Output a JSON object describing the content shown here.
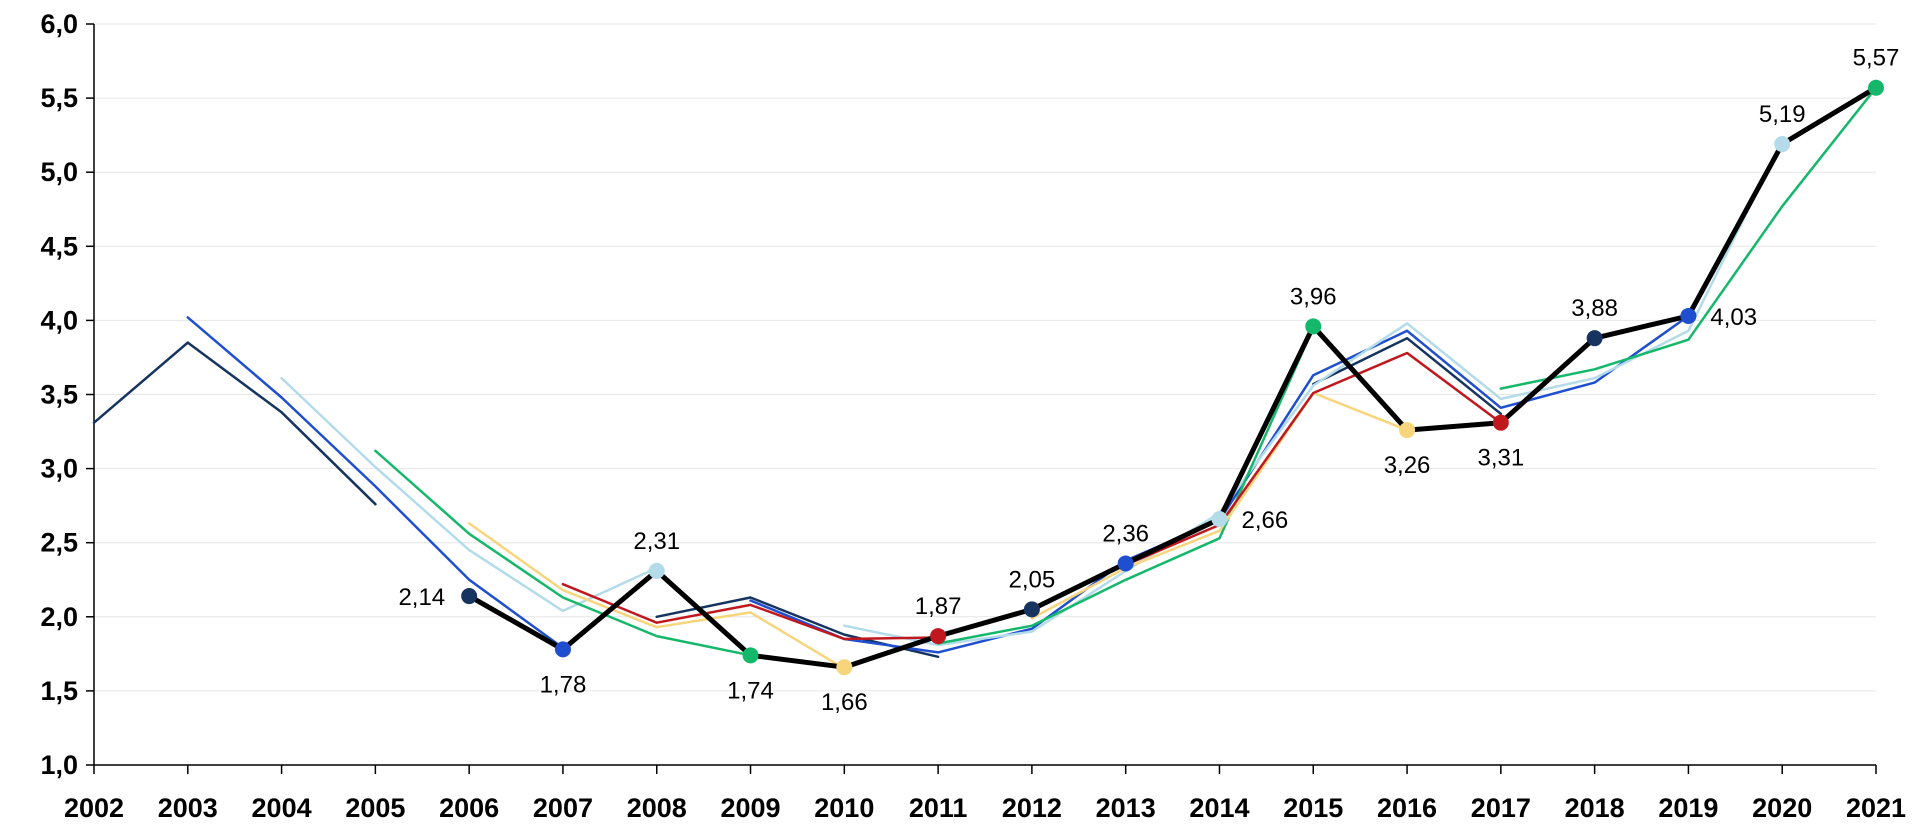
{
  "chart_data": {
    "type": "line",
    "title": "",
    "xlabel": "",
    "ylabel": "",
    "ylim": [
      1.0,
      6.0
    ],
    "ytick_labels": [
      "1,0",
      "1,5",
      "2,0",
      "2,5",
      "3,0",
      "3,5",
      "4,0",
      "4,5",
      "5,0",
      "5,5",
      "6,0"
    ],
    "categories": [
      "2002",
      "2003",
      "2004",
      "2005",
      "2006",
      "2007",
      "2008",
      "2009",
      "2010",
      "2011",
      "2012",
      "2013",
      "2014",
      "2015",
      "2016",
      "2017",
      "2018",
      "2019",
      "2020",
      "2021"
    ],
    "grid": true,
    "legend": "none",
    "series": [
      {
        "color": "#16345f",
        "width": 2.5,
        "marker": false,
        "values": [
          3.31,
          3.85,
          3.38,
          2.76,
          null,
          null,
          2.0,
          2.13,
          1.88,
          1.73,
          null,
          null,
          null,
          3.57,
          3.88,
          3.37,
          null,
          null,
          null,
          null
        ]
      },
      {
        "color": "#1f4fcf",
        "width": 2.5,
        "marker": false,
        "values": [
          null,
          4.02,
          3.48,
          2.88,
          2.25,
          1.79,
          null,
          2.11,
          1.85,
          1.76,
          1.92,
          2.38,
          2.65,
          3.63,
          3.93,
          3.41,
          3.58,
          4.03,
          null,
          null
        ]
      },
      {
        "color": "#b3dbea",
        "width": 2.5,
        "marker": false,
        "values": [
          null,
          null,
          3.61,
          3.01,
          2.45,
          2.04,
          2.33,
          null,
          1.94,
          1.81,
          1.9,
          2.31,
          2.7,
          3.56,
          3.98,
          3.47,
          3.61,
          3.93,
          5.21,
          null
        ]
      },
      {
        "color": "#15b86b",
        "width": 2.5,
        "marker": false,
        "values": [
          null,
          null,
          null,
          3.12,
          2.56,
          2.13,
          1.87,
          1.74,
          null,
          1.82,
          1.94,
          2.25,
          2.53,
          3.95,
          null,
          3.54,
          3.67,
          3.87,
          4.77,
          5.57
        ]
      },
      {
        "color": "#f7d57c",
        "width": 2.5,
        "marker": false,
        "values": [
          null,
          null,
          null,
          null,
          2.63,
          2.18,
          1.93,
          2.03,
          1.65,
          null,
          1.99,
          2.33,
          2.58,
          3.51,
          3.26,
          null,
          null,
          null,
          null,
          null
        ]
      },
      {
        "color": "#c0181e",
        "width": 2.5,
        "marker": false,
        "values": [
          null,
          null,
          null,
          null,
          null,
          2.22,
          1.96,
          2.08,
          1.85,
          1.86,
          null,
          2.35,
          2.62,
          3.51,
          3.78,
          3.31,
          null,
          null,
          null,
          null
        ]
      },
      {
        "color": "#000000",
        "width": 5,
        "marker": false,
        "values": [
          null,
          null,
          null,
          null,
          2.14,
          1.78,
          2.31,
          1.74,
          1.66,
          1.87,
          2.05,
          2.36,
          2.66,
          3.96,
          3.26,
          3.31,
          3.88,
          4.03,
          5.19,
          5.57
        ]
      }
    ],
    "markers": [
      {
        "x": "2006",
        "value": 2.14,
        "label": "2,14",
        "color": "#16345f",
        "label_pos": "left"
      },
      {
        "x": "2007",
        "value": 1.78,
        "label": "1,78",
        "color": "#1f4fcf",
        "label_pos": "below"
      },
      {
        "x": "2008",
        "value": 2.31,
        "label": "2,31",
        "color": "#b3dbea",
        "label_pos": "above"
      },
      {
        "x": "2009",
        "value": 1.74,
        "label": "1,74",
        "color": "#15b86b",
        "label_pos": "below"
      },
      {
        "x": "2010",
        "value": 1.66,
        "label": "1,66",
        "color": "#f7d57c",
        "label_pos": "below"
      },
      {
        "x": "2011",
        "value": 1.87,
        "label": "1,87",
        "color": "#c0181e",
        "label_pos": "above"
      },
      {
        "x": "2012",
        "value": 2.05,
        "label": "2,05",
        "color": "#16345f",
        "label_pos": "above"
      },
      {
        "x": "2013",
        "value": 2.36,
        "label": "2,36",
        "color": "#1f4fcf",
        "label_pos": "above"
      },
      {
        "x": "2014",
        "value": 2.66,
        "label": "2,66",
        "color": "#b3dbea",
        "label_pos": "right"
      },
      {
        "x": "2015",
        "value": 3.96,
        "label": "3,96",
        "color": "#15b86b",
        "label_pos": "above"
      },
      {
        "x": "2016",
        "value": 3.26,
        "label": "3,26",
        "color": "#f7d57c",
        "label_pos": "below"
      },
      {
        "x": "2017",
        "value": 3.31,
        "label": "3,31",
        "color": "#c0181e",
        "label_pos": "below"
      },
      {
        "x": "2018",
        "value": 3.88,
        "label": "3,88",
        "color": "#16345f",
        "label_pos": "above"
      },
      {
        "x": "2019",
        "value": 4.03,
        "label": "4,03",
        "color": "#1f4fcf",
        "label_pos": "right"
      },
      {
        "x": "2020",
        "value": 5.19,
        "label": "5,19",
        "color": "#b3dbea",
        "label_pos": "above"
      },
      {
        "x": "2021",
        "value": 5.57,
        "label": "5,57",
        "color": "#15b86b",
        "label_pos": "above"
      }
    ]
  }
}
